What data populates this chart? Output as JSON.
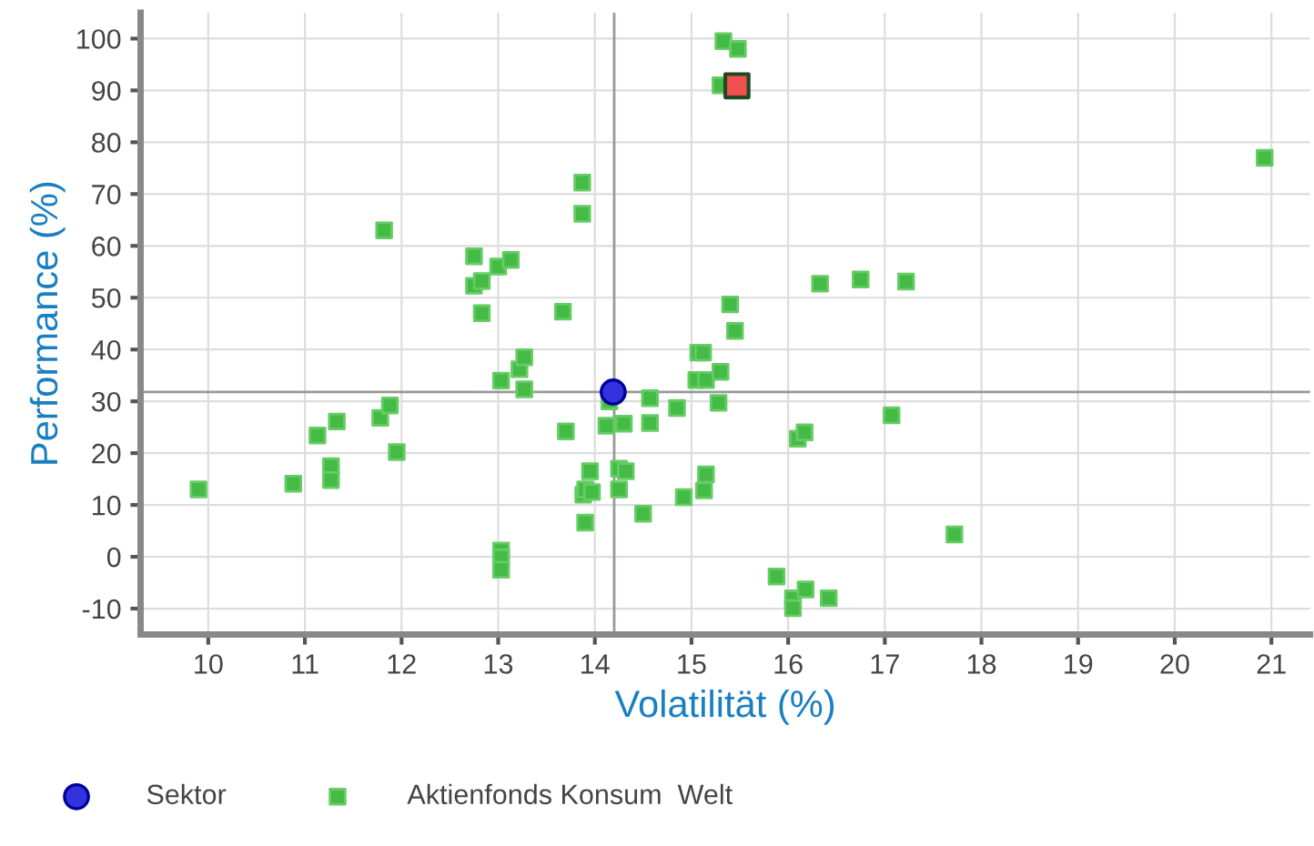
{
  "chart_data": {
    "type": "scatter",
    "xlabel": "Volatilität (%)",
    "ylabel": "Performance (%)",
    "xlim": [
      9.3,
      21.4
    ],
    "xticks": [
      10,
      11,
      12,
      13,
      14,
      15,
      16,
      17,
      18,
      19,
      20,
      21
    ],
    "ylim": [
      -15,
      105
    ],
    "yticks": [
      -10,
      0,
      10,
      20,
      30,
      40,
      50,
      60,
      70,
      80,
      90,
      100
    ],
    "grid": true,
    "legend": "bottom",
    "ref_lines": [
      {
        "axis": "x",
        "value": 14.2,
        "color": "#999999"
      },
      {
        "axis": "y",
        "value": 31.8,
        "color": "#999999"
      }
    ],
    "series": [
      {
        "color": "#f05050",
        "marker": "square",
        "x": [
          15.47
        ],
        "values": [
          90.9
        ]
      },
      {
        "name": "Sektor",
        "color": "#3333dd",
        "marker": "circle",
        "x": [
          14.19
        ],
        "values": [
          31.8
        ]
      },
      {
        "name": "Aktienfonds Konsum  Welt",
        "color": "#44bb44",
        "marker": "square",
        "x": [
          9.9,
          10.88,
          11.13,
          11.27,
          11.27,
          11.33,
          11.78,
          11.88,
          11.95,
          11.82,
          12.75,
          12.75,
          12.83,
          12.83,
          13.0,
          13.13,
          13.03,
          13.22,
          13.27,
          13.27,
          13.03,
          13.03,
          13.03,
          13.67,
          13.87,
          13.87,
          13.7,
          13.88,
          13.9,
          13.9,
          13.95,
          13.97,
          14.12,
          14.15,
          14.25,
          14.25,
          14.32,
          14.3,
          14.5,
          14.57,
          14.57,
          14.85,
          14.92,
          15.07,
          15.12,
          15.05,
          15.15,
          15.15,
          15.13,
          15.3,
          15.28,
          15.45,
          15.4,
          15.3,
          15.33,
          15.48,
          16.1,
          16.17,
          16.33,
          16.75,
          17.22,
          17.07,
          17.72,
          15.88,
          16.05,
          16.05,
          16.18,
          16.42,
          20.93
        ],
        "values": [
          13,
          14.1,
          23.4,
          17.5,
          14.8,
          26.1,
          26.8,
          29.2,
          20.2,
          63,
          58,
          52.3,
          53.2,
          47,
          56,
          57.3,
          34,
          36.2,
          38.5,
          32.3,
          1.2,
          -0.1,
          -2.5,
          47.3,
          72.2,
          66.2,
          24.2,
          12,
          13,
          6.6,
          16.5,
          12.5,
          25.3,
          30,
          13,
          17,
          16.5,
          25.7,
          8.3,
          30.6,
          25.8,
          28.7,
          11.5,
          39.4,
          39.4,
          34.1,
          34.1,
          15.9,
          12.8,
          35.7,
          29.7,
          43.6,
          48.7,
          91,
          99.5,
          98,
          22.8,
          24,
          52.7,
          53.5,
          53.1,
          27.3,
          4.3,
          -3.8,
          -8,
          -9.9,
          -6.3,
          -8,
          77
        ]
      }
    ]
  }
}
